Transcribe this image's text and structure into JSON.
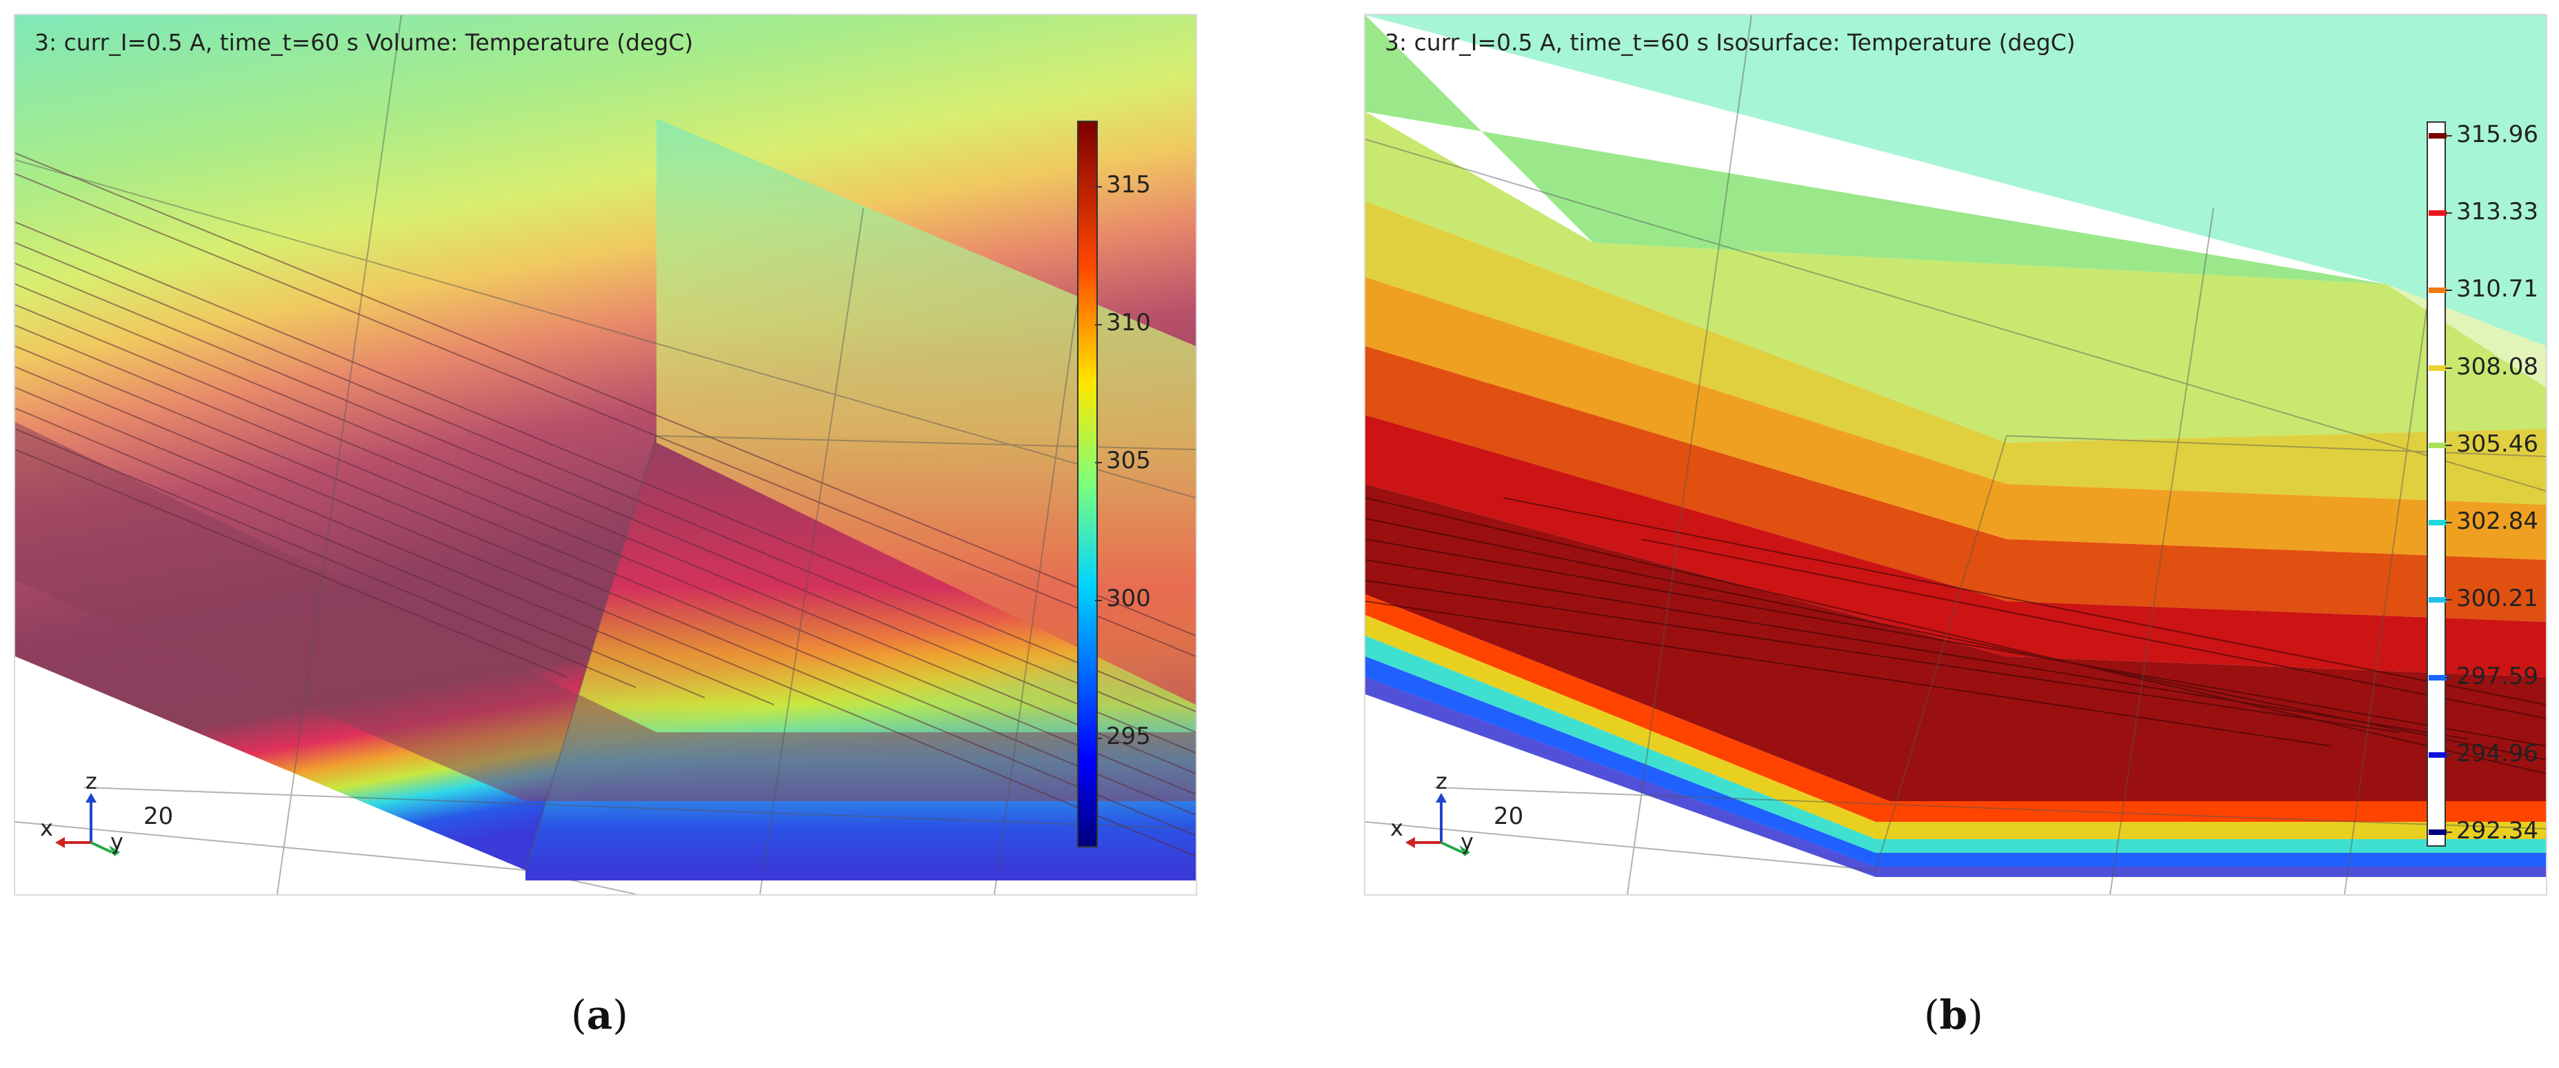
{
  "panel_a": {
    "title": "3: curr_I=0.5 A, time_t=60 s  Volume: Temperature (degC)",
    "colorbar_ticks": [
      "315",
      "310",
      "305",
      "300",
      "295"
    ],
    "axes": {
      "z": "z",
      "x": "x",
      "y": "y"
    },
    "scale_label": "20",
    "caption_letter": "a"
  },
  "panel_b": {
    "title": "3: curr_I=0.5 A, time_t=60 s  Isosurface: Temperature (degC)",
    "legend_levels": [
      "315.96",
      "313.33",
      "310.71",
      "308.08",
      "305.46",
      "302.84",
      "300.21",
      "297.59",
      "294.96",
      "292.34"
    ],
    "legend_colors": [
      "#7a0000",
      "#e8181d",
      "#f07a10",
      "#e9d22a",
      "#a8e05a",
      "#20d8d8",
      "#20c0e8",
      "#1a66ff",
      "#1010e0",
      "#000080"
    ],
    "axes": {
      "z": "z",
      "x": "x",
      "y": "y"
    },
    "scale_label": "20",
    "caption_letter": "b"
  },
  "colors": {
    "hot": "#8b0000",
    "cold": "#1a1aa8",
    "axis_x": "#cc2222",
    "axis_y": "#22aa44",
    "axis_z": "#2244cc"
  }
}
